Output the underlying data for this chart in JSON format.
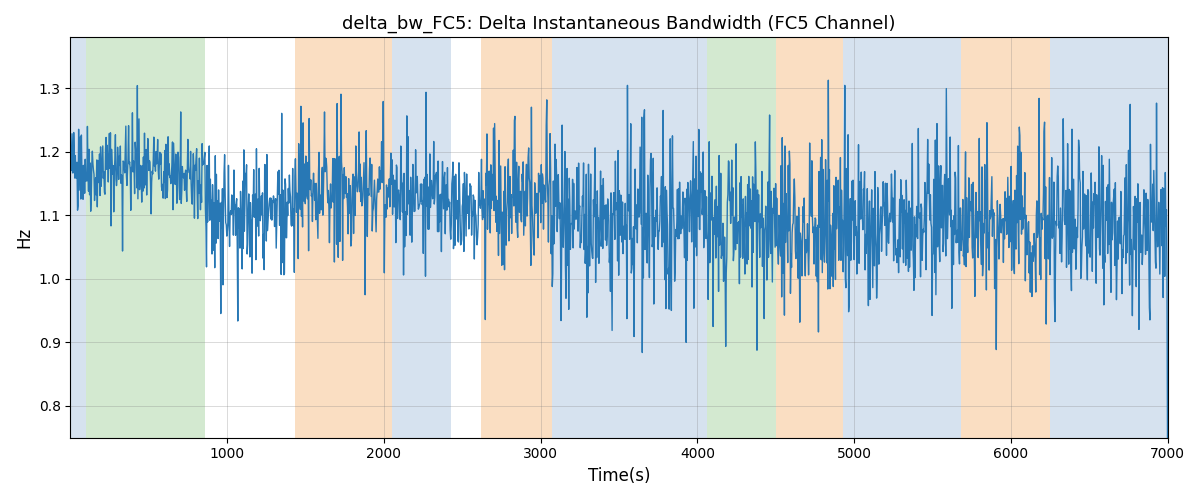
{
  "title": "delta_bw_FC5: Delta Instantaneous Bandwidth (FC5 Channel)",
  "xlabel": "Time(s)",
  "ylabel": "Hz",
  "xlim": [
    0,
    7000
  ],
  "ylim": [
    0.75,
    1.38
  ],
  "yticks": [
    0.8,
    0.9,
    1.0,
    1.1,
    1.2,
    1.3
  ],
  "xticks": [
    1000,
    2000,
    3000,
    4000,
    5000,
    6000,
    7000
  ],
  "line_color": "#2878b5",
  "line_width": 1.0,
  "bg_bands": [
    {
      "xstart": 0,
      "xend": 100,
      "color": "#aec6e0",
      "alpha": 0.5
    },
    {
      "xstart": 100,
      "xend": 860,
      "color": "#a8d5a2",
      "alpha": 0.5
    },
    {
      "xstart": 1430,
      "xend": 2050,
      "color": "#f7c99a",
      "alpha": 0.6
    },
    {
      "xstart": 2050,
      "xend": 2430,
      "color": "#aec6e0",
      "alpha": 0.5
    },
    {
      "xstart": 2620,
      "xend": 3070,
      "color": "#f7c99a",
      "alpha": 0.6
    },
    {
      "xstart": 3070,
      "xend": 4060,
      "color": "#aec6e0",
      "alpha": 0.5
    },
    {
      "xstart": 4060,
      "xend": 4500,
      "color": "#a8d5a2",
      "alpha": 0.5
    },
    {
      "xstart": 4500,
      "xend": 4930,
      "color": "#f7c99a",
      "alpha": 0.6
    },
    {
      "xstart": 4930,
      "xend": 5680,
      "color": "#aec6e0",
      "alpha": 0.5
    },
    {
      "xstart": 5680,
      "xend": 6250,
      "color": "#f7c99a",
      "alpha": 0.6
    },
    {
      "xstart": 6250,
      "xend": 7000,
      "color": "#aec6e0",
      "alpha": 0.5
    }
  ],
  "random_seed": 42,
  "n_points": 2000
}
